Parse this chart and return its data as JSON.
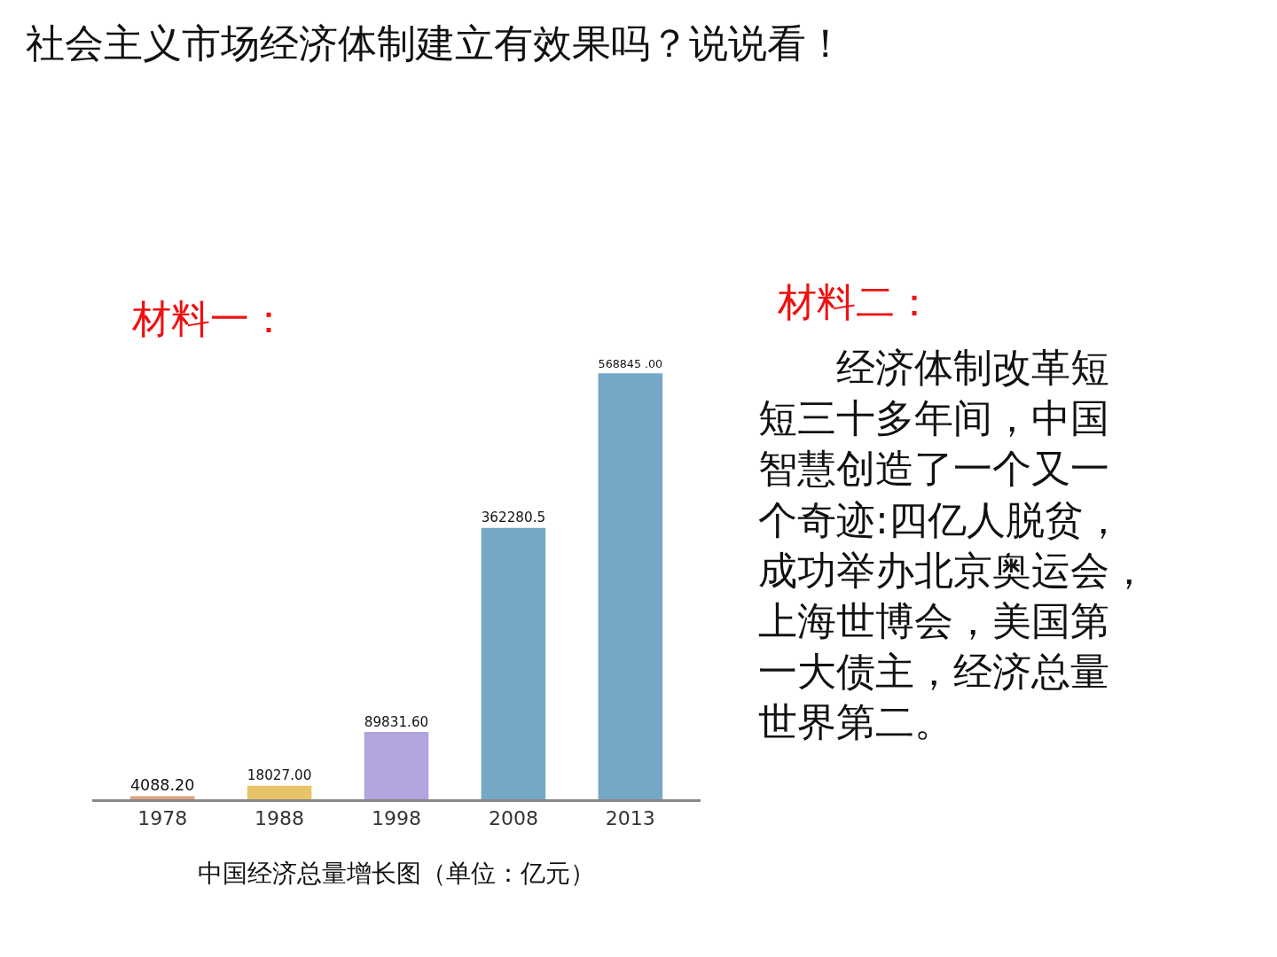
{
  "chart_data": {
    "type": "bar",
    "title": "社会主义市场经济体制建立有效果吗？说说看！",
    "categories": [
      "1978",
      "1988",
      "1998",
      "2008",
      "2013"
    ],
    "values": [
      4088.2,
      18027,
      89831.6,
      362280.5,
      568845
    ],
    "colors": [
      "#e0a080",
      "#e8c468",
      "#b2a4dc",
      "#74a8c6",
      "#74a8c6"
    ],
    "value_labels": [
      "4088.20",
      "18027.00",
      "89831.60",
      "362280.5",
      "568845 .00"
    ],
    "xlabel": "中国经济总量增长图（单位：亿元）",
    "annotations": [
      "材料一：",
      "材料二：",
      "　　经济体制改革短短三十多年间，中国智慧创造了一个又一个奇迹:四亿人脱贫，成功举办北京奥运会，上海世博会，美国第一大债主，经济总量世界第二。"
    ],
    "tick_labels": "x"
  }
}
